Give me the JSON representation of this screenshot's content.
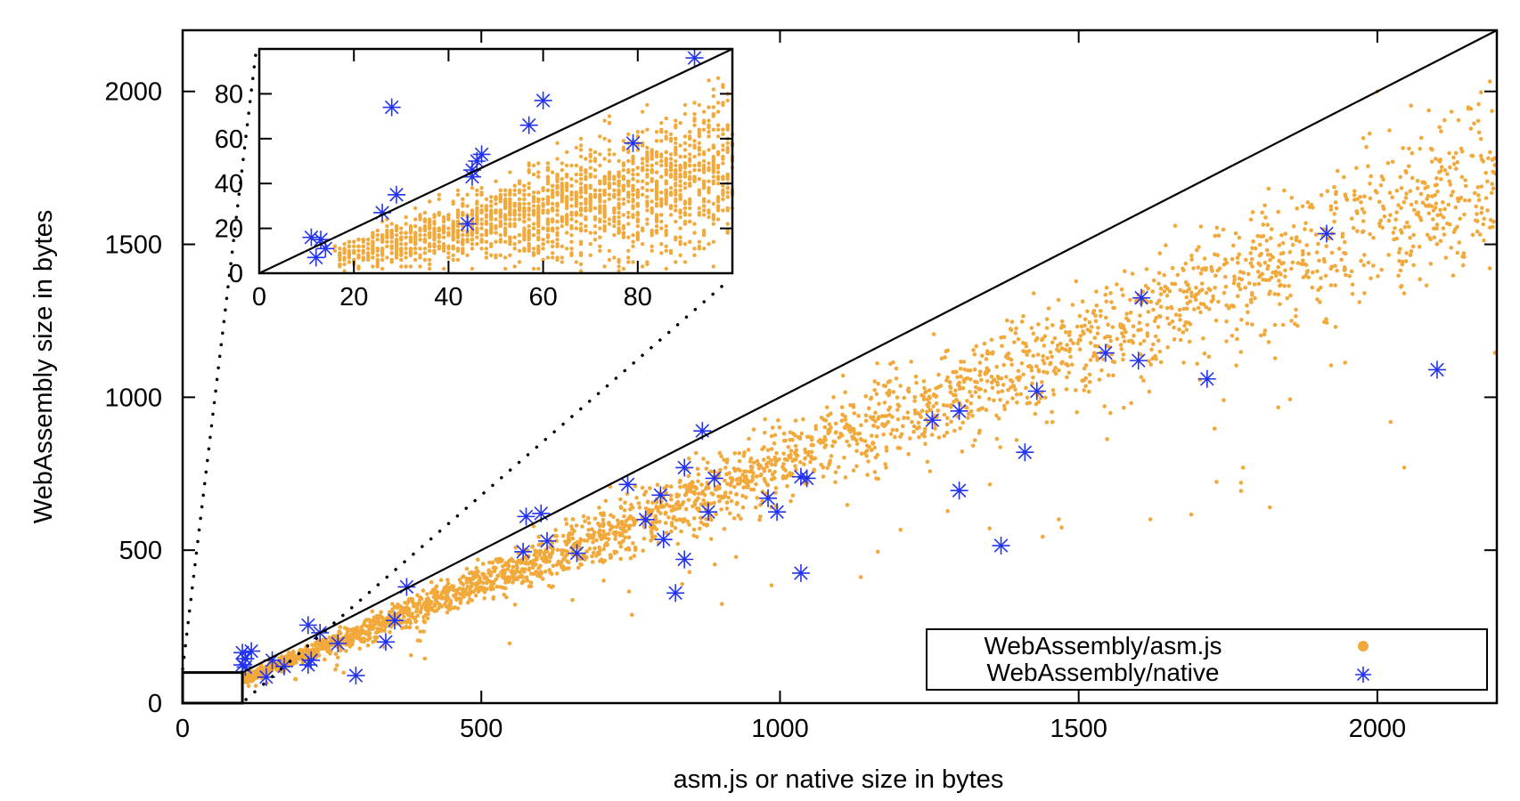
{
  "chart_data": [
    {
      "type": "scatter",
      "role": "main",
      "title": "",
      "xlabel": "asm.js or native size in bytes",
      "ylabel": "WebAssembly size in bytes",
      "xlim": [
        0,
        2200
      ],
      "ylim": [
        0,
        2200
      ],
      "xticks": [
        "0",
        "500",
        "1000",
        "1500",
        "2000"
      ],
      "yticks": [
        "0",
        "500",
        "1000",
        "1500",
        "2000"
      ],
      "xtick_values": [
        0,
        500,
        1000,
        1500,
        2000
      ],
      "ytick_values": [
        0,
        500,
        1000,
        1500,
        2000
      ],
      "grid": false,
      "reference_line": "y = x",
      "legend": {
        "position": "bottom-right",
        "entries": [
          {
            "label": "WebAssembly/asm.js",
            "marker": "dot",
            "color": "#f2a93b"
          },
          {
            "label": "WebAssembly/native",
            "marker": "asterisk",
            "color": "#2233ee"
          }
        ]
      },
      "series": [
        {
          "name": "WebAssembly/asm.js",
          "color": "#f2a93b",
          "trend": {
            "description": "dense band",
            "slope_approx": 0.78,
            "x_range": [
              100,
              2200
            ],
            "spread": 0.08,
            "count": 3200
          },
          "outliers": [
            [
              2045,
              770
            ],
            [
              1530,
              1300
            ],
            [
              1930,
              1230
            ],
            [
              2000,
              2000
            ]
          ]
        },
        {
          "name": "WebAssembly/native",
          "color": "#2233ee",
          "points": [
            [
              100,
              165
            ],
            [
              115,
              170
            ],
            [
              105,
              145
            ],
            [
              100,
              125
            ],
            [
              105,
              118
            ],
            [
              140,
              85
            ],
            [
              150,
              140
            ],
            [
              170,
              120
            ],
            [
              210,
              255
            ],
            [
              230,
              230
            ],
            [
              215,
              140
            ],
            [
              210,
              125
            ],
            [
              260,
              195
            ],
            [
              290,
              90
            ],
            [
              340,
              200
            ],
            [
              355,
              270
            ],
            [
              375,
              380
            ],
            [
              570,
              495
            ],
            [
              575,
              610
            ],
            [
              600,
              620
            ],
            [
              610,
              530
            ],
            [
              660,
              490
            ],
            [
              745,
              715
            ],
            [
              775,
              600
            ],
            [
              800,
              680
            ],
            [
              805,
              535
            ],
            [
              825,
              360
            ],
            [
              840,
              770
            ],
            [
              840,
              470
            ],
            [
              880,
              625
            ],
            [
              890,
              735
            ],
            [
              870,
              890
            ],
            [
              980,
              670
            ],
            [
              995,
              625
            ],
            [
              1035,
              740
            ],
            [
              1045,
              735
            ],
            [
              1035,
              425
            ],
            [
              1255,
              925
            ],
            [
              1300,
              955
            ],
            [
              1300,
              695
            ],
            [
              1370,
              515
            ],
            [
              1410,
              820
            ],
            [
              1430,
              1020
            ],
            [
              1545,
              1145
            ],
            [
              1600,
              1120
            ],
            [
              1605,
              1325
            ],
            [
              1715,
              1060
            ],
            [
              1915,
              1535
            ],
            [
              2100,
              1090
            ]
          ]
        }
      ]
    },
    {
      "type": "scatter",
      "role": "inset",
      "title": "",
      "xlim": [
        0,
        100
      ],
      "ylim": [
        0,
        100
      ],
      "xticks": [
        "0",
        "20",
        "40",
        "60",
        "80"
      ],
      "yticks": [
        "0",
        "20",
        "40",
        "60",
        "80"
      ],
      "xtick_values": [
        0,
        20,
        40,
        60,
        80
      ],
      "ytick_values": [
        0,
        20,
        40,
        60,
        80
      ],
      "reference_line": "y = x",
      "series": [
        {
          "name": "WebAssembly/asm.js",
          "color": "#f2a93b",
          "trend": {
            "description": "integer-x columns",
            "slope_approx": 0.48,
            "x_range": [
              16,
              100
            ],
            "spread": 0.35,
            "count": 1900
          }
        },
        {
          "name": "WebAssembly/native",
          "color": "#2233ee",
          "points": [
            [
              11,
              16
            ],
            [
              13,
              15
            ],
            [
              12,
              7
            ],
            [
              14,
              11
            ],
            [
              26,
              27
            ],
            [
              28,
              74
            ],
            [
              29,
              35
            ],
            [
              44,
              22
            ],
            [
              45,
              43
            ],
            [
              45,
              46
            ],
            [
              46,
              50
            ],
            [
              47,
              53
            ],
            [
              57,
              66
            ],
            [
              60,
              77
            ],
            [
              79,
              58
            ],
            [
              92,
              96
            ]
          ]
        }
      ]
    }
  ]
}
